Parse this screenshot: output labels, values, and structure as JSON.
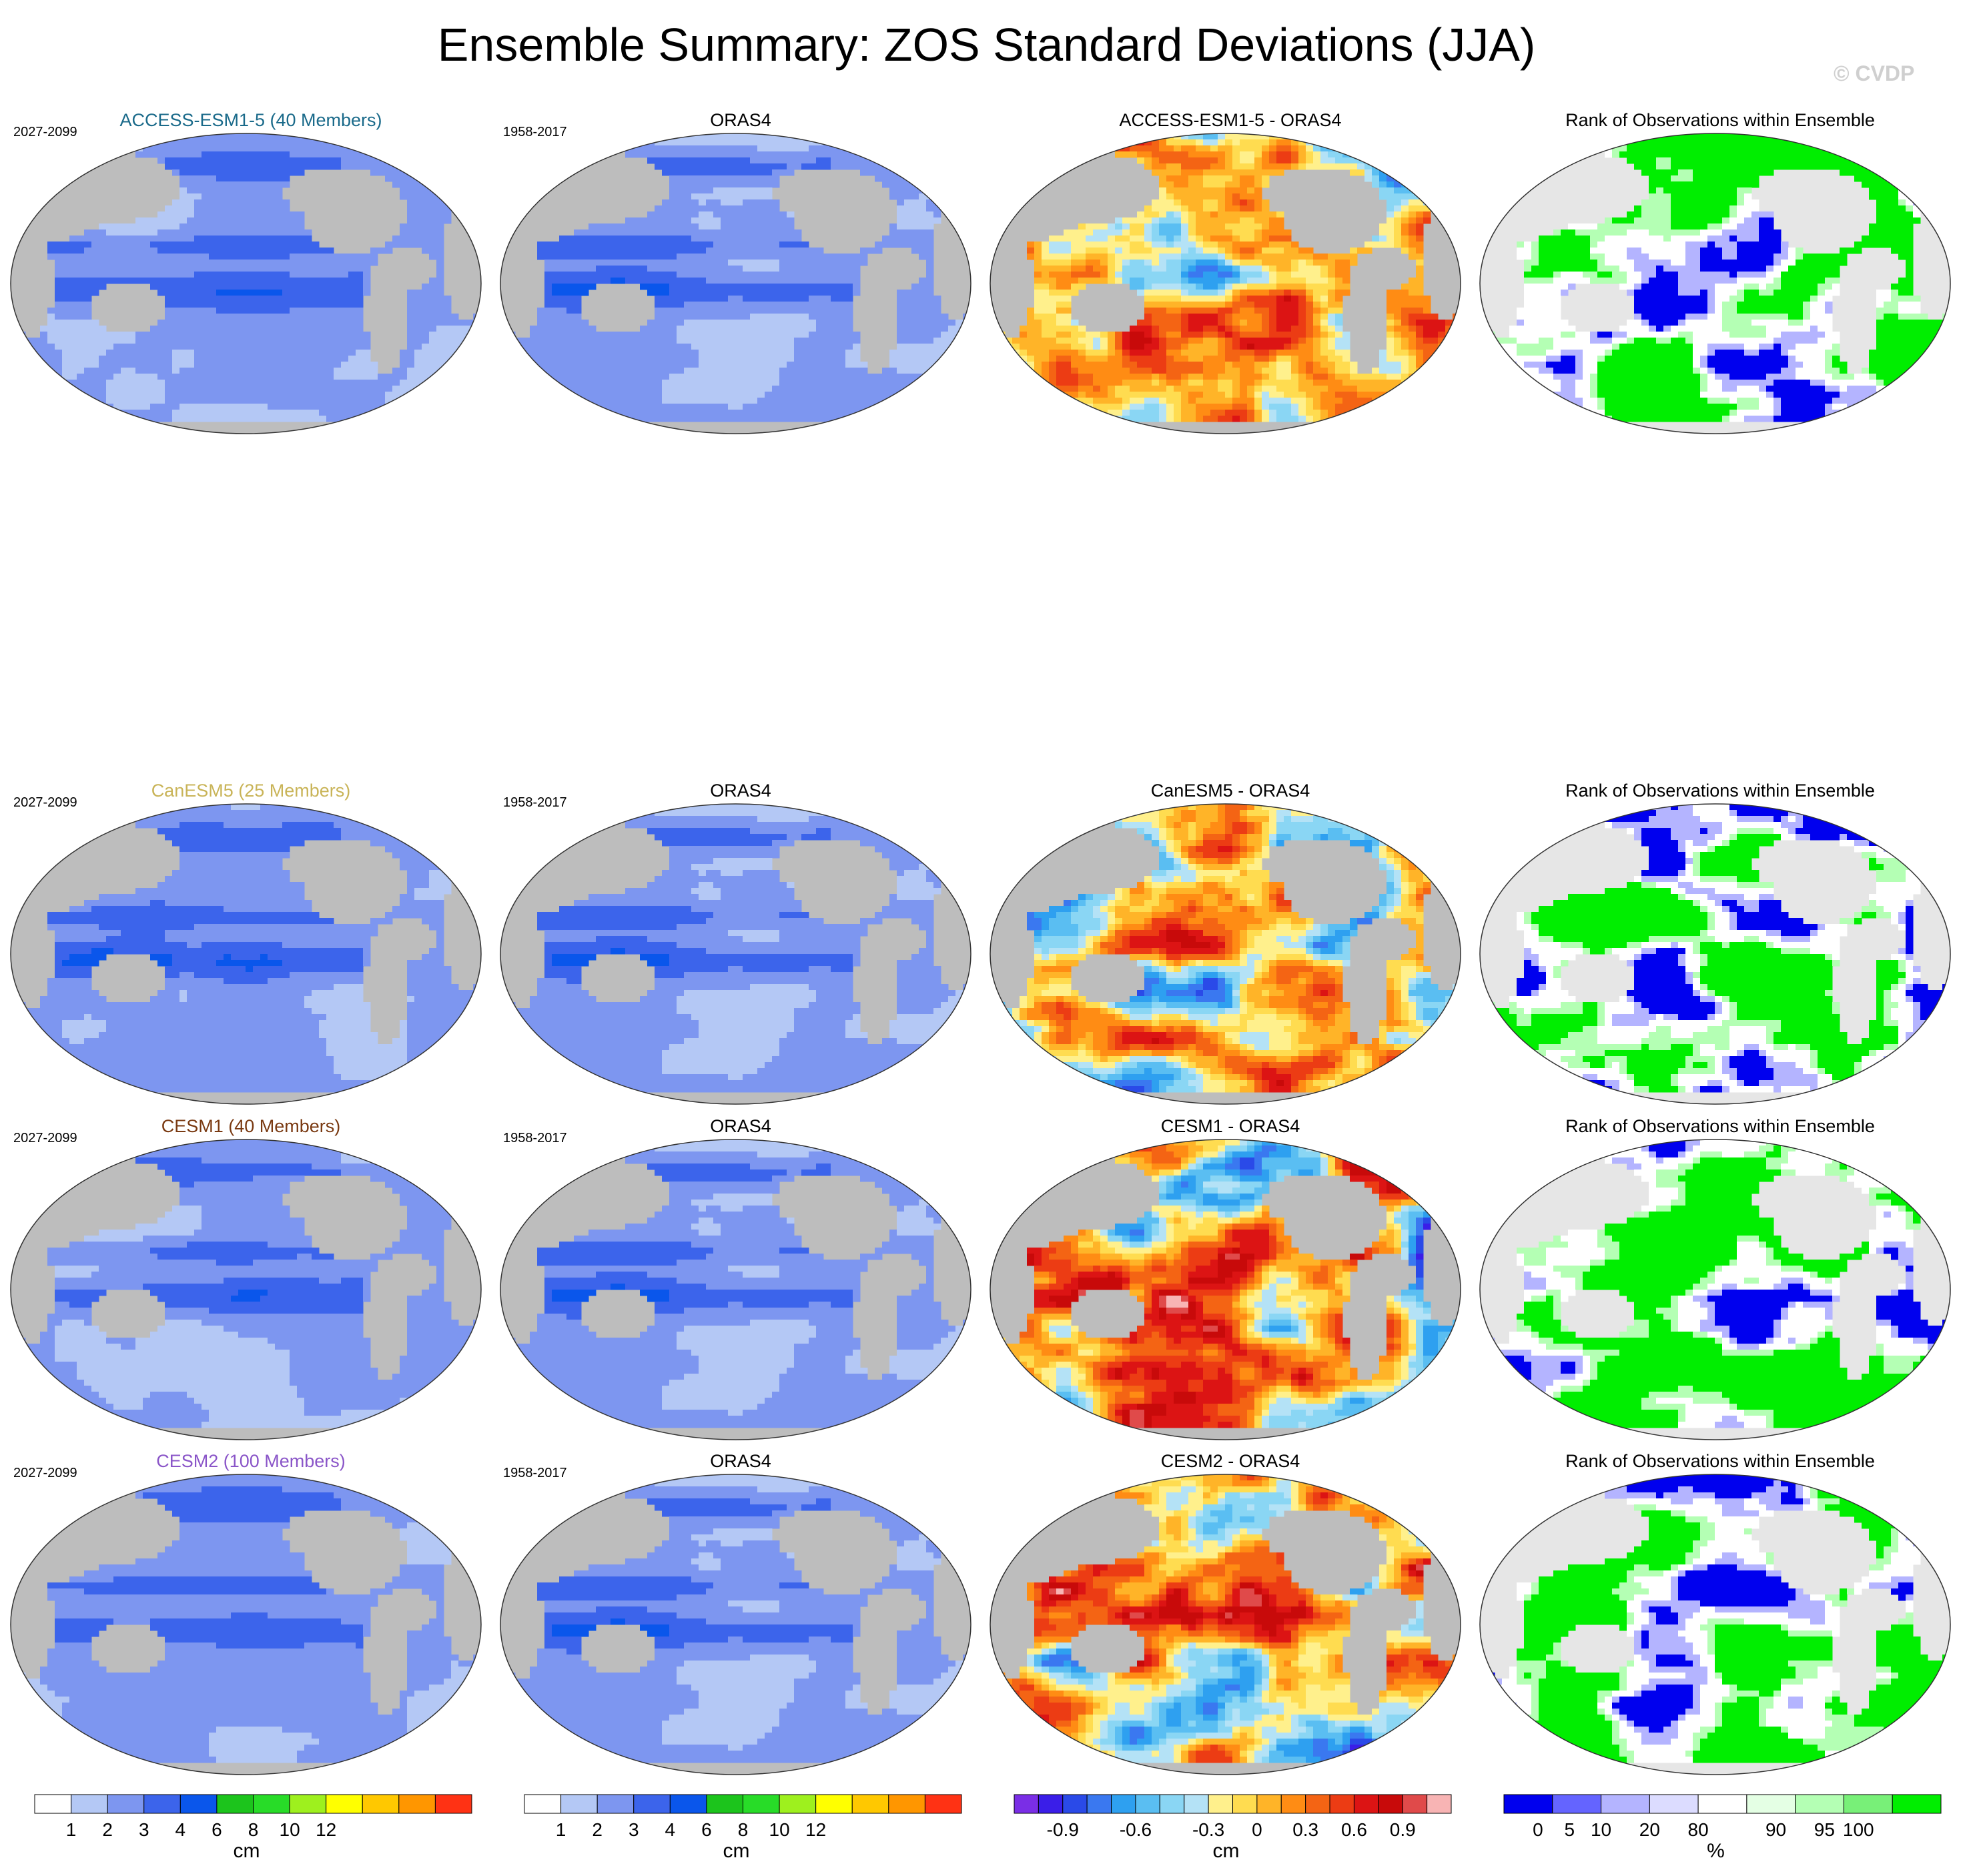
{
  "title": "Ensemble Summary: ZOS Standard Deviations (JJA)",
  "watermark": "© CVDP",
  "chart_data": {
    "type": "heatmap",
    "variable": "ZOS",
    "season": "JJA",
    "rows": [
      {
        "model": "ACCESS-ESM1-5 (40 Members)",
        "model_color": "#1a6a8a",
        "period": "2027-2099",
        "obs_title": "ORAS4",
        "obs_period": "1958-2017",
        "diff_title": "ACCESS-ESM1-5 - ORAS4",
        "rank_title": "Rank of Observations within Ensemble"
      },
      {
        "model": "CanESM5 (25 Members)",
        "model_color": "#c9b458",
        "period": "2027-2099",
        "obs_title": "ORAS4",
        "obs_period": "1958-2017",
        "diff_title": "CanESM5 - ORAS4",
        "rank_title": "Rank of Observations within Ensemble"
      },
      {
        "model": "CESM1 (40 Members)",
        "model_color": "#7a3a12",
        "period": "2027-2099",
        "obs_title": "ORAS4",
        "obs_period": "1958-2017",
        "diff_title": "CESM1 - ORAS4",
        "rank_title": "Rank of Observations within Ensemble"
      },
      {
        "model": "CESM2 (100 Members)",
        "model_color": "#8a55c8",
        "period": "2027-2099",
        "obs_title": "ORAS4",
        "obs_period": "1958-2017",
        "diff_title": "CESM2 - ORAS4",
        "rank_title": "Rank of Observations within Ensemble"
      }
    ],
    "colorbars": [
      {
        "id": "std",
        "unit": "cm",
        "colors": [
          "#ffffff",
          "#b4c8f5",
          "#7d96f0",
          "#3c64eb",
          "#0a56eb",
          "#1cc41c",
          "#28dc28",
          "#9ef01e",
          "#ffff00",
          "#ffc800",
          "#ff9600",
          "#ff3214"
        ],
        "tick_labels": [
          "1",
          "2",
          "3",
          "4",
          "6",
          "8",
          "10",
          "12"
        ],
        "tick_positions": [
          1,
          2,
          3,
          4,
          5,
          6,
          7,
          8
        ]
      },
      {
        "id": "std2",
        "unit": "cm",
        "colors": [
          "#ffffff",
          "#b4c8f5",
          "#7d96f0",
          "#3c64eb",
          "#0a56eb",
          "#1cc41c",
          "#28dc28",
          "#9ef01e",
          "#ffff00",
          "#ffc800",
          "#ff9600",
          "#ff3214"
        ],
        "tick_labels": [
          "1",
          "2",
          "3",
          "4",
          "6",
          "8",
          "10",
          "12"
        ],
        "tick_positions": [
          1,
          2,
          3,
          4,
          5,
          6,
          7,
          8
        ]
      },
      {
        "id": "diff",
        "unit": "cm",
        "colors": [
          "#7a2ee6",
          "#3a1ee8",
          "#2a4ae8",
          "#3a78f0",
          "#2ea0f0",
          "#5abef2",
          "#8ad6f4",
          "#b4e2f6",
          "#fff08c",
          "#ffdc50",
          "#ffb428",
          "#ff8c14",
          "#f46414",
          "#ec3c14",
          "#dc1414",
          "#c80a0a",
          "#e04a4a",
          "#f8b4b4"
        ],
        "tick_labels": [
          "-0.9",
          "-0.6",
          "-0.3",
          "0",
          "0.3",
          "0.6",
          "0.9"
        ],
        "tick_positions": [
          2,
          5,
          8,
          10,
          12,
          14,
          16
        ]
      },
      {
        "id": "rank",
        "unit": "%",
        "colors": [
          "#0000ee",
          "#6464ff",
          "#b4b4ff",
          "#dcdcff",
          "#ffffff",
          "#e4ffe4",
          "#b4ffb4",
          "#78f078",
          "#00ee00"
        ],
        "tick_labels": [
          "0",
          "5",
          "10",
          "20",
          "80",
          "90",
          "95",
          "100"
        ],
        "tick_positions": [
          0.7,
          1.35,
          2,
          3,
          4,
          5.6,
          6.6,
          7.3
        ]
      }
    ]
  }
}
